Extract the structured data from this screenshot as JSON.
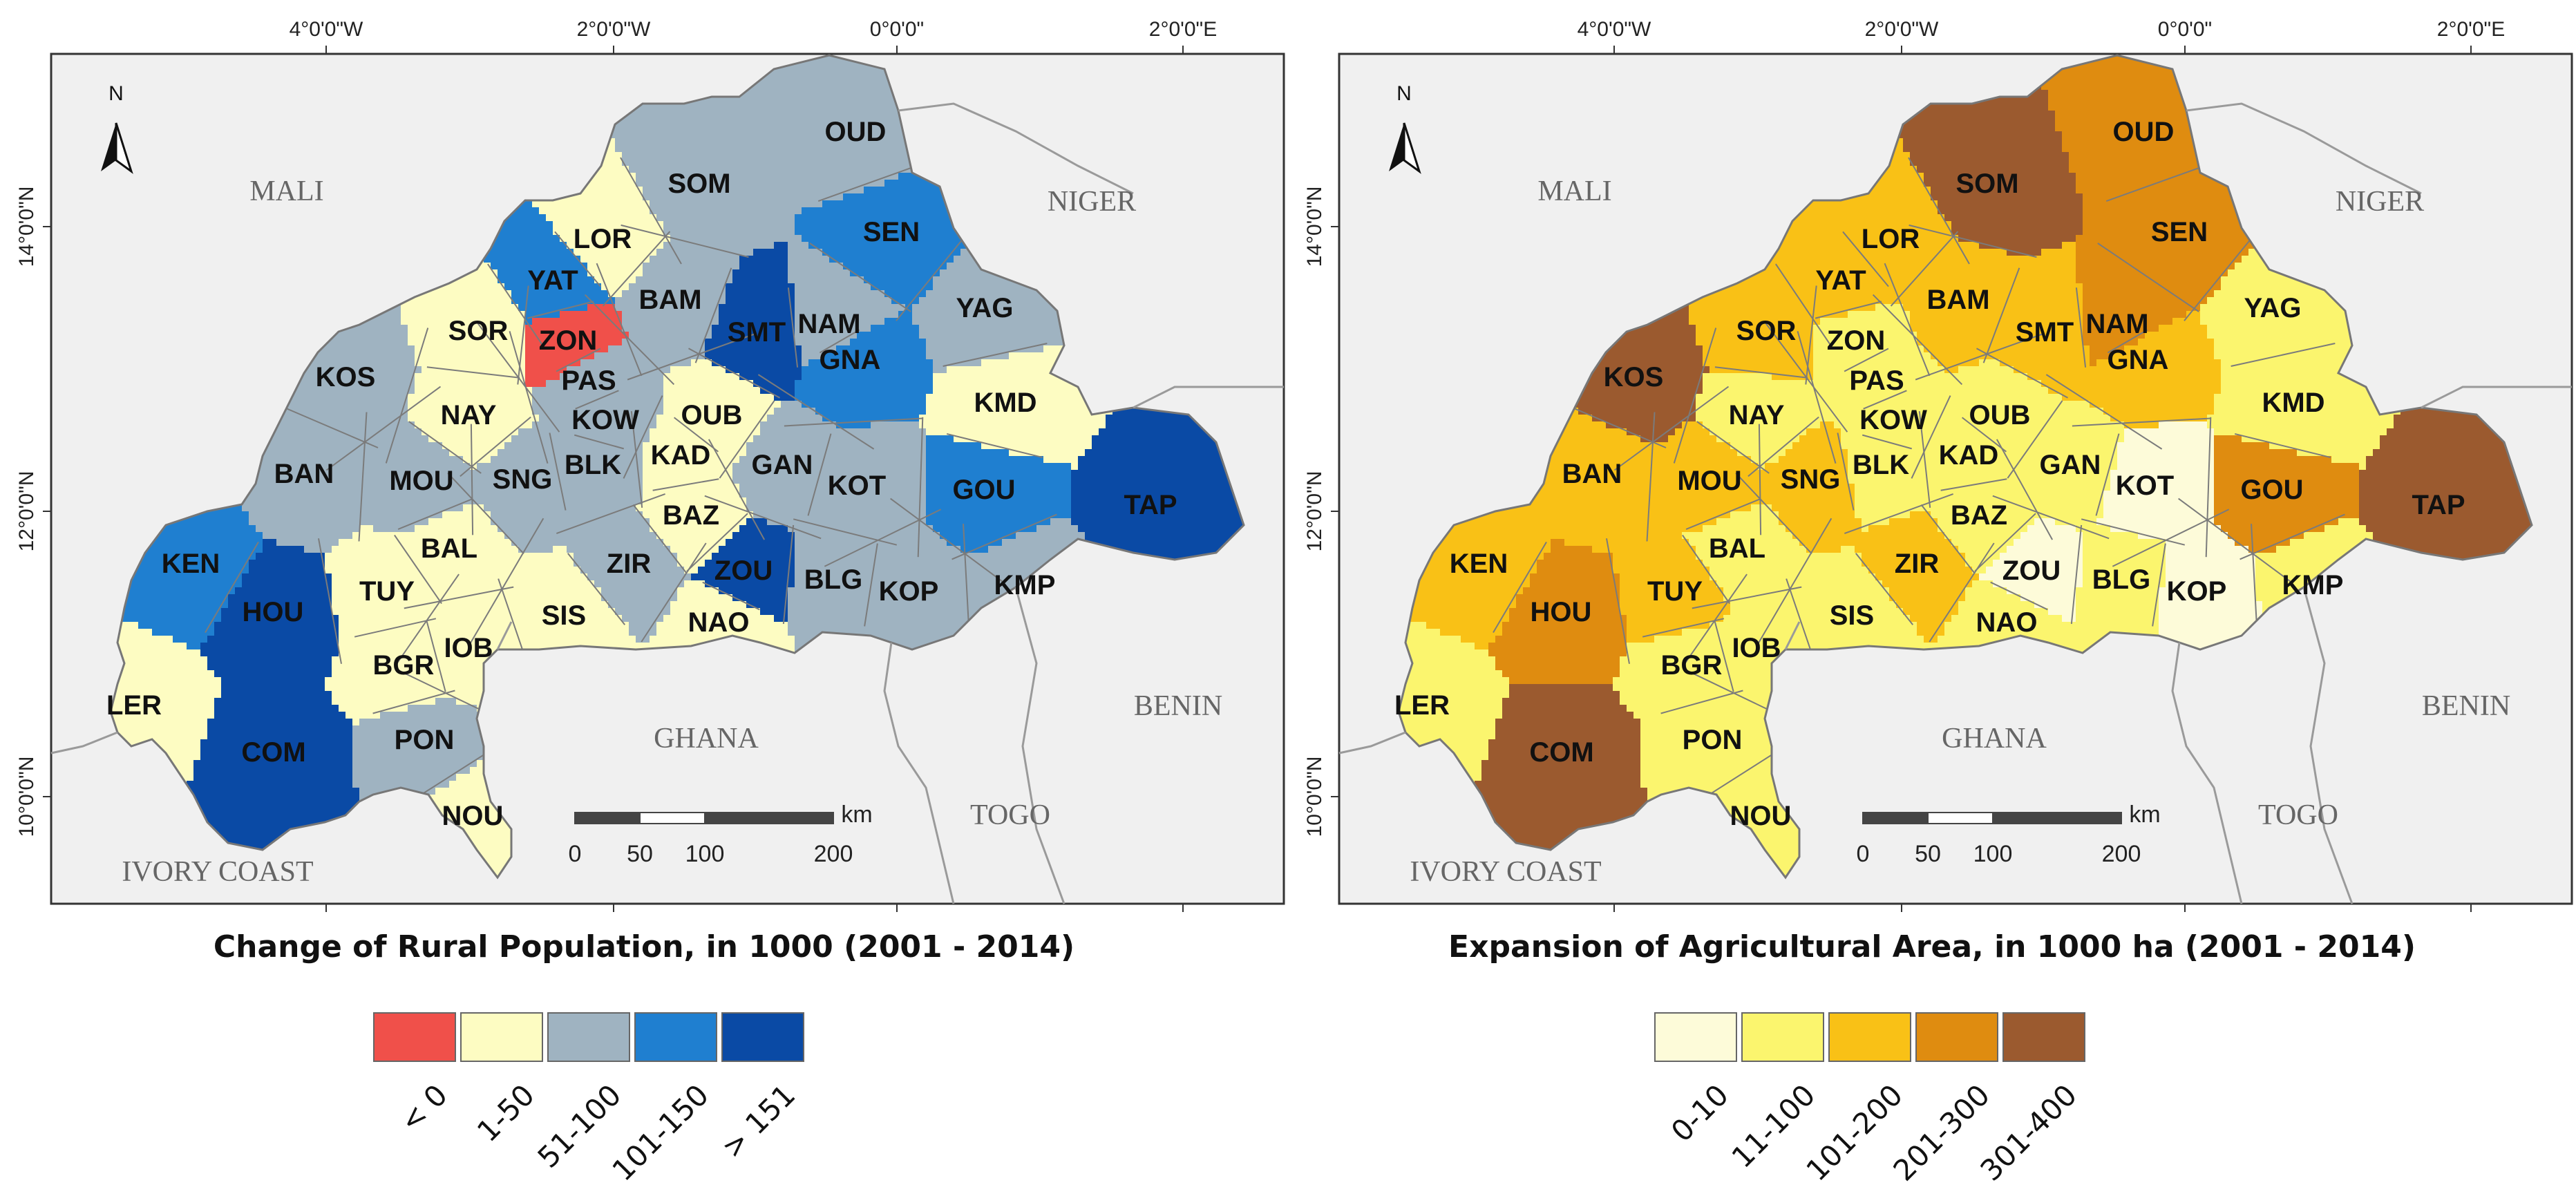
{
  "maps": [
    {
      "id": "rural-population",
      "legend_title": "Change of Rural Population, in 1000 (2001 - 2014)",
      "legend": [
        {
          "label": "< 0",
          "color": "#f0504a"
        },
        {
          "label": "1-50",
          "color": "#fdfcc2"
        },
        {
          "label": "51-100",
          "color": "#9fb3c1"
        },
        {
          "label": "101-150",
          "color": "#1f7fd0"
        },
        {
          "label": "> 151",
          "color": "#0a4aa5"
        }
      ],
      "provinces": {
        "OUD": 2,
        "SOM": 2,
        "LOR": 1,
        "YAT": 3,
        "SEN": 3,
        "SOR": 1,
        "ZON": 0,
        "BAM": 2,
        "SMT": 4,
        "NAM": 2,
        "YAG": 2,
        "KOS": 2,
        "GNA": 3,
        "PAS": 2,
        "NAY": 1,
        "KOW": 2,
        "OUB": 1,
        "KMD": 1,
        "KAD": 1,
        "BAN": 2,
        "MOU": 2,
        "SNG": 2,
        "BLK": 2,
        "GAN": 2,
        "KOT": 2,
        "GOU": 3,
        "TAP": 4,
        "BAZ": 1,
        "KEN": 3,
        "BAL": 1,
        "ZIR": 2,
        "ZOU": 4,
        "HOU": 4,
        "TUY": 1,
        "BLG": 2,
        "KOP": 2,
        "KMP": 2,
        "SIS": 1,
        "NAO": 1,
        "IOB": 1,
        "BGR": 1,
        "LER": 1,
        "COM": 4,
        "PON": 2,
        "NOU": 1
      }
    },
    {
      "id": "agricultural-area",
      "legend_title": "Expansion of Agricultural Area, in 1000 ha (2001 - 2014)",
      "legend": [
        {
          "label": "0-10",
          "color": "#fdfbd9"
        },
        {
          "label": "11-100",
          "color": "#fbf56e"
        },
        {
          "label": "101-200",
          "color": "#f9c116"
        },
        {
          "label": "201-300",
          "color": "#df8c10"
        },
        {
          "label": "301-400",
          "color": "#9b5a2f"
        }
      ],
      "provinces": {
        "OUD": 3,
        "SOM": 4,
        "LOR": 2,
        "YAT": 2,
        "SEN": 3,
        "SOR": 2,
        "ZON": 1,
        "BAM": 2,
        "SMT": 2,
        "NAM": 3,
        "YAG": 1,
        "KOS": 4,
        "GNA": 2,
        "PAS": 1,
        "NAY": 1,
        "KOW": 1,
        "OUB": 1,
        "KMD": 1,
        "KAD": 1,
        "BAN": 2,
        "MOU": 2,
        "SNG": 2,
        "BLK": 1,
        "GAN": 1,
        "KOT": 0,
        "GOU": 3,
        "TAP": 4,
        "BAZ": 1,
        "KEN": 2,
        "BAL": 1,
        "ZIR": 2,
        "ZOU": 0,
        "HOU": 3,
        "TUY": 2,
        "BLG": 1,
        "KOP": 0,
        "KMP": 1,
        "SIS": 1,
        "NAO": 1,
        "IOB": 1,
        "BGR": 1,
        "LER": 1,
        "COM": 4,
        "PON": 1,
        "NOU": 1
      }
    }
  ],
  "province_codes": [
    "OUD",
    "SOM",
    "LOR",
    "YAT",
    "SEN",
    "SOR",
    "ZON",
    "BAM",
    "SMT",
    "NAM",
    "YAG",
    "KOS",
    "GNA",
    "PAS",
    "NAY",
    "KOW",
    "OUB",
    "KMD",
    "KAD",
    "BAN",
    "MOU",
    "SNG",
    "BLK",
    "GAN",
    "KOT",
    "GOU",
    "TAP",
    "BAZ",
    "KEN",
    "BAL",
    "ZIR",
    "ZOU",
    "HOU",
    "TUY",
    "BLG",
    "KOP",
    "KMP",
    "SIS",
    "NAO",
    "IOB",
    "BGR",
    "LER",
    "COM",
    "PON",
    "NOU"
  ],
  "countries": [
    "MALI",
    "NIGER",
    "BENIN",
    "TOGO",
    "GHANA",
    "IVORY COAST"
  ],
  "lon_labels": [
    "4°0'0\"W",
    "2°0'0\"W",
    "0°0'0\"",
    "2°0'0\"E"
  ],
  "lat_labels": [
    "14°0'0\"N",
    "12°0'0\"N",
    "10°0'0\"N"
  ],
  "north_label": "N",
  "scale": {
    "unit": "km",
    "ticks": [
      "0",
      "50",
      "100",
      "200"
    ]
  }
}
